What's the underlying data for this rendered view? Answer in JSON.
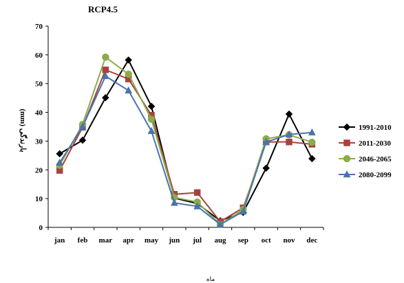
{
  "chart_data": {
    "type": "line",
    "title": "RCP4.5",
    "ylabel": "(mm) بارندگی",
    "xlabel": "ماه",
    "categories": [
      "jan",
      "feb",
      "mar",
      "apr",
      "may",
      "jun",
      "jul",
      "aug",
      "sep",
      "oct",
      "nov",
      "dec"
    ],
    "ylim": [
      0,
      70
    ],
    "yticks": [
      0,
      10,
      20,
      30,
      40,
      50,
      60,
      70
    ],
    "grid": false,
    "legend_position": "right",
    "series": [
      {
        "name": "1991-2010",
        "color": "#000000",
        "marker": "diamond",
        "values": [
          25.6,
          30.3,
          45.1,
          58.2,
          42.1,
          10.2,
          8.3,
          2.3,
          5.2,
          20.6,
          39.4,
          23.9
        ]
      },
      {
        "name": "2011-2030",
        "color": "#a5443f",
        "marker": "square",
        "values": [
          19.8,
          34.8,
          54.8,
          51.6,
          39.0,
          11.5,
          12.1,
          2.0,
          6.8,
          29.7,
          29.7,
          28.9
        ]
      },
      {
        "name": "2046-2065",
        "color": "#8cab4a",
        "marker": "circle",
        "values": [
          21.6,
          35.8,
          59.2,
          53.3,
          37.6,
          10.4,
          8.8,
          1.0,
          6.2,
          30.8,
          32.2,
          29.6
        ]
      },
      {
        "name": "2080-2099",
        "color": "#4a72ae",
        "marker": "triangle",
        "values": [
          22.5,
          35.0,
          52.6,
          47.6,
          33.5,
          8.5,
          7.3,
          1.0,
          5.5,
          29.7,
          32.3,
          33.0
        ]
      }
    ]
  }
}
